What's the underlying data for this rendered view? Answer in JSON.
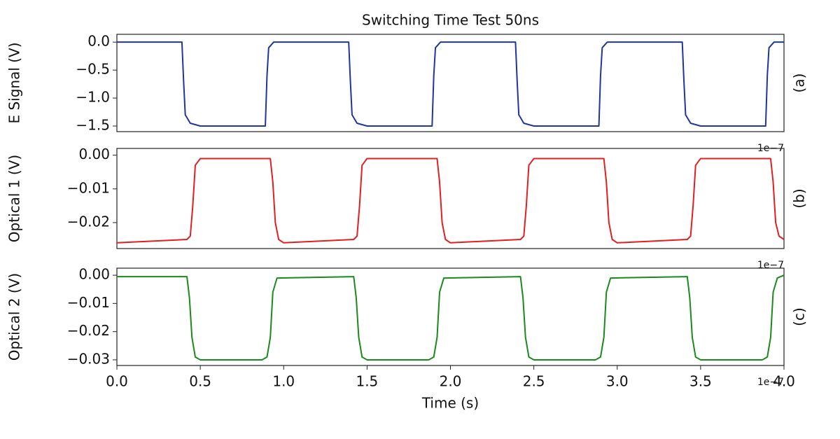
{
  "chart_data": [
    {
      "type": "line",
      "title": "Switching Time Test 50ns",
      "ylabel": "E Signal (V)",
      "panel_label": "(a)",
      "color": "#1f35a0",
      "xlim": [
        0,
        4
      ],
      "ylim": [
        -1.6,
        0.14
      ],
      "x_offset_label": "1e−7",
      "yticks": [
        {
          "value": 0,
          "label": "0.0"
        },
        {
          "value": -0.5,
          "label": "−0.5"
        },
        {
          "value": -1,
          "label": "−1.0"
        },
        {
          "value": -1.5,
          "label": "−1.5"
        }
      ],
      "x": [
        0,
        0.39,
        0.4,
        0.41,
        0.44,
        0.5,
        0.89,
        0.9,
        0.91,
        0.94,
        1.39,
        1.4,
        1.41,
        1.44,
        1.5,
        1.89,
        1.9,
        1.91,
        1.94,
        2.39,
        2.4,
        2.41,
        2.44,
        2.5,
        2.89,
        2.9,
        2.91,
        2.94,
        3.39,
        3.4,
        3.41,
        3.44,
        3.5,
        3.89,
        3.9,
        3.91,
        3.94,
        4.0
      ],
      "values": [
        0,
        0,
        -0.7,
        -1.3,
        -1.45,
        -1.5,
        -1.5,
        -0.6,
        -0.1,
        0,
        0,
        -0.7,
        -1.3,
        -1.45,
        -1.5,
        -1.5,
        -0.6,
        -0.1,
        0,
        0,
        -0.7,
        -1.3,
        -1.45,
        -1.5,
        -1.5,
        -0.6,
        -0.1,
        0,
        0,
        -0.7,
        -1.3,
        -1.45,
        -1.5,
        -1.5,
        -0.6,
        -0.1,
        0,
        0
      ]
    },
    {
      "type": "line",
      "ylabel": "Optical 1 (V)",
      "panel_label": "(b)",
      "color": "#e02020",
      "xlim": [
        0,
        4
      ],
      "ylim": [
        -0.0277,
        0.002
      ],
      "x_offset_label": "1e−7",
      "yticks": [
        {
          "value": 0,
          "label": "0.00"
        },
        {
          "value": -0.01,
          "label": "−0.01"
        },
        {
          "value": -0.02,
          "label": "−0.02"
        }
      ],
      "x": [
        0,
        0.42,
        0.44,
        0.455,
        0.47,
        0.5,
        0.92,
        0.935,
        0.95,
        0.97,
        1.0,
        1.42,
        1.44,
        1.455,
        1.47,
        1.5,
        1.92,
        1.935,
        1.95,
        1.97,
        2.0,
        2.42,
        2.44,
        2.455,
        2.47,
        2.5,
        2.92,
        2.935,
        2.95,
        2.97,
        3.0,
        3.42,
        3.44,
        3.455,
        3.47,
        3.5,
        3.92,
        3.935,
        3.95,
        3.97,
        4.0
      ],
      "values": [
        -0.026,
        -0.025,
        -0.024,
        -0.015,
        -0.003,
        -0.001,
        -0.001,
        -0.008,
        -0.02,
        -0.025,
        -0.026,
        -0.025,
        -0.024,
        -0.015,
        -0.003,
        -0.001,
        -0.001,
        -0.008,
        -0.02,
        -0.025,
        -0.026,
        -0.025,
        -0.024,
        -0.015,
        -0.003,
        -0.001,
        -0.001,
        -0.008,
        -0.02,
        -0.025,
        -0.026,
        -0.025,
        -0.024,
        -0.015,
        -0.003,
        -0.001,
        -0.001,
        -0.008,
        -0.02,
        -0.024,
        -0.025
      ]
    },
    {
      "type": "line",
      "ylabel": "Optical 2 (V)",
      "panel_label": "(c)",
      "xlabel": "Time (s)",
      "color": "#1a8a1a",
      "xlim": [
        0,
        4
      ],
      "ylim": [
        -0.032,
        0.0025
      ],
      "x_offset_label": "1e−7",
      "yticks": [
        {
          "value": 0,
          "label": "0.00"
        },
        {
          "value": -0.01,
          "label": "−0.01"
        },
        {
          "value": -0.02,
          "label": "−0.02"
        },
        {
          "value": -0.03,
          "label": "−0.03"
        }
      ],
      "xticks": [
        {
          "value": 0,
          "label": "0.0"
        },
        {
          "value": 0.5,
          "label": "0.5"
        },
        {
          "value": 1,
          "label": "1.0"
        },
        {
          "value": 1.5,
          "label": "1.5"
        },
        {
          "value": 2,
          "label": "2.0"
        },
        {
          "value": 2.5,
          "label": "2.5"
        },
        {
          "value": 3,
          "label": "3.0"
        },
        {
          "value": 3.5,
          "label": "3.5"
        },
        {
          "value": 4,
          "label": "4.0"
        }
      ],
      "x": [
        0,
        0.42,
        0.435,
        0.45,
        0.47,
        0.5,
        0.87,
        0.9,
        0.92,
        0.935,
        0.96,
        1.42,
        1.435,
        1.45,
        1.47,
        1.5,
        1.87,
        1.9,
        1.92,
        1.935,
        1.96,
        2.42,
        2.435,
        2.45,
        2.47,
        2.5,
        2.87,
        2.9,
        2.92,
        2.935,
        2.96,
        3.42,
        3.435,
        3.45,
        3.47,
        3.5,
        3.87,
        3.9,
        3.92,
        3.935,
        3.96,
        4.0
      ],
      "values": [
        -0.0005,
        -0.0005,
        -0.008,
        -0.022,
        -0.029,
        -0.03,
        -0.03,
        -0.029,
        -0.022,
        -0.006,
        -0.001,
        -0.0005,
        -0.008,
        -0.022,
        -0.029,
        -0.03,
        -0.03,
        -0.029,
        -0.022,
        -0.006,
        -0.001,
        -0.0005,
        -0.008,
        -0.022,
        -0.029,
        -0.03,
        -0.03,
        -0.029,
        -0.022,
        -0.006,
        -0.001,
        -0.0005,
        -0.008,
        -0.022,
        -0.029,
        -0.03,
        -0.03,
        -0.029,
        -0.022,
        -0.006,
        -0.001,
        0
      ]
    }
  ]
}
